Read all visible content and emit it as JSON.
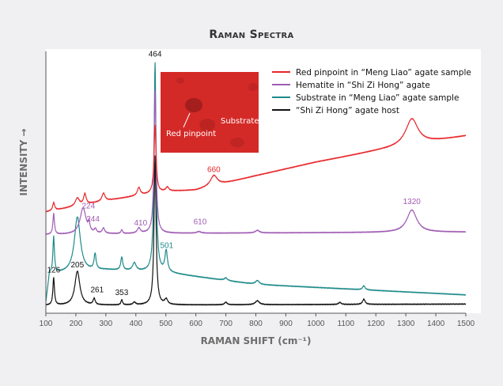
{
  "chart_data": {
    "type": "line",
    "title": "Raman Spectra",
    "xlabel": "RAMAN SHIFT (cm⁻¹)",
    "ylabel": "INTENSITY →",
    "xlim": [
      100,
      1500
    ],
    "ylim": [
      0,
      100
    ],
    "xticks": [
      100,
      200,
      300,
      400,
      500,
      600,
      700,
      800,
      900,
      1000,
      1100,
      1200,
      1300,
      1400,
      1500
    ],
    "grid": false,
    "legend_position": "top-right",
    "series": [
      {
        "name": "Red pinpoint in “Meng Liao” agate sample",
        "color": "#e8262a",
        "baseline": [
          [
            100,
            38.7
          ],
          [
            300,
            43
          ],
          [
            500,
            46.5
          ],
          [
            600,
            47
          ],
          [
            800,
            52.5
          ],
          [
            1000,
            57.7
          ],
          [
            1200,
            62
          ],
          [
            1500,
            67.7
          ]
        ],
        "peaks": [
          [
            126,
            3,
            4
          ],
          [
            205,
            3,
            8
          ],
          [
            230,
            4,
            5
          ],
          [
            292,
            3,
            6
          ],
          [
            410,
            3,
            6
          ],
          [
            464,
            26,
            4
          ],
          [
            505,
            1.5,
            6
          ],
          [
            660,
            4,
            14
          ],
          [
            1320,
            10,
            25
          ]
        ]
      },
      {
        "name": "Hematite in “Shi Zi Hong” agate",
        "color": "#a05cb4",
        "baseline": [
          [
            100,
            30
          ],
          [
            500,
            30.5
          ],
          [
            1500,
            31
          ]
        ],
        "peaks": [
          [
            126,
            8,
            3
          ],
          [
            224,
            10,
            12
          ],
          [
            244,
            3,
            3
          ],
          [
            265,
            1.5,
            4
          ],
          [
            292,
            2,
            5
          ],
          [
            353,
            1.5,
            3
          ],
          [
            410,
            2,
            6
          ],
          [
            464,
            55,
            4
          ],
          [
            610,
            0.6,
            8
          ],
          [
            805,
            1,
            8
          ],
          [
            1320,
            8.5,
            20
          ]
        ]
      },
      {
        "name": "Substrate in “Meng Liao” agate sample",
        "color": "#1f8a8a",
        "baseline": [
          [
            100,
            4
          ],
          [
            112,
            15
          ],
          [
            300,
            16.5
          ],
          [
            500,
            15.5
          ],
          [
            800,
            11
          ],
          [
            1500,
            7
          ]
        ],
        "peaks": [
          [
            126,
            14,
            3
          ],
          [
            205,
            21,
            12
          ],
          [
            264,
            6,
            4
          ],
          [
            353,
            5,
            4
          ],
          [
            395,
            3,
            7
          ],
          [
            464,
            80,
            4
          ],
          [
            501,
            8,
            5
          ],
          [
            700,
            1,
            6
          ],
          [
            805,
            1.5,
            8
          ],
          [
            1160,
            1.5,
            5
          ]
        ]
      },
      {
        "name": "“Shi Zi Hong” agate host",
        "color": "#111111",
        "baseline": [
          [
            100,
            3
          ],
          [
            1500,
            3.5
          ]
        ],
        "peaks": [
          [
            126,
            10.6,
            3
          ],
          [
            205,
            13,
            10
          ],
          [
            261,
            2.4,
            4
          ],
          [
            353,
            2,
            3
          ],
          [
            395,
            1,
            5
          ],
          [
            464,
            57,
            4
          ],
          [
            501,
            2,
            6
          ],
          [
            700,
            1,
            5
          ],
          [
            805,
            1.5,
            8
          ],
          [
            1080,
            0.8,
            5
          ],
          [
            1160,
            2,
            5
          ]
        ]
      }
    ],
    "annotations": [
      {
        "text": "464",
        "x": 464,
        "y": 98,
        "color": "#111111"
      },
      {
        "text": "660",
        "x": 660,
        "y": 54,
        "color": "#e8262a"
      },
      {
        "text": "1320",
        "x": 1320,
        "y": 41.7,
        "color": "#a05cb4"
      },
      {
        "text": "224",
        "x": 242,
        "y": 40,
        "color": "#a05cb4"
      },
      {
        "text": "244",
        "x": 257,
        "y": 35,
        "color": "#a05cb4"
      },
      {
        "text": "410",
        "x": 416,
        "y": 33.5,
        "color": "#a05cb4"
      },
      {
        "text": "610",
        "x": 614,
        "y": 34,
        "color": "#a05cb4"
      },
      {
        "text": "501",
        "x": 503,
        "y": 25,
        "color": "#1f8a8a"
      },
      {
        "text": "126",
        "x": 126,
        "y": 15.5,
        "color": "#111111"
      },
      {
        "text": "205",
        "x": 205,
        "y": 17.5,
        "color": "#111111"
      },
      {
        "text": "261",
        "x": 271,
        "y": 8,
        "color": "#111111"
      },
      {
        "text": "353",
        "x": 353,
        "y": 7,
        "color": "#111111"
      }
    ],
    "inset": {
      "labels": [
        "Red pinpoint",
        "Substrate"
      ]
    }
  }
}
